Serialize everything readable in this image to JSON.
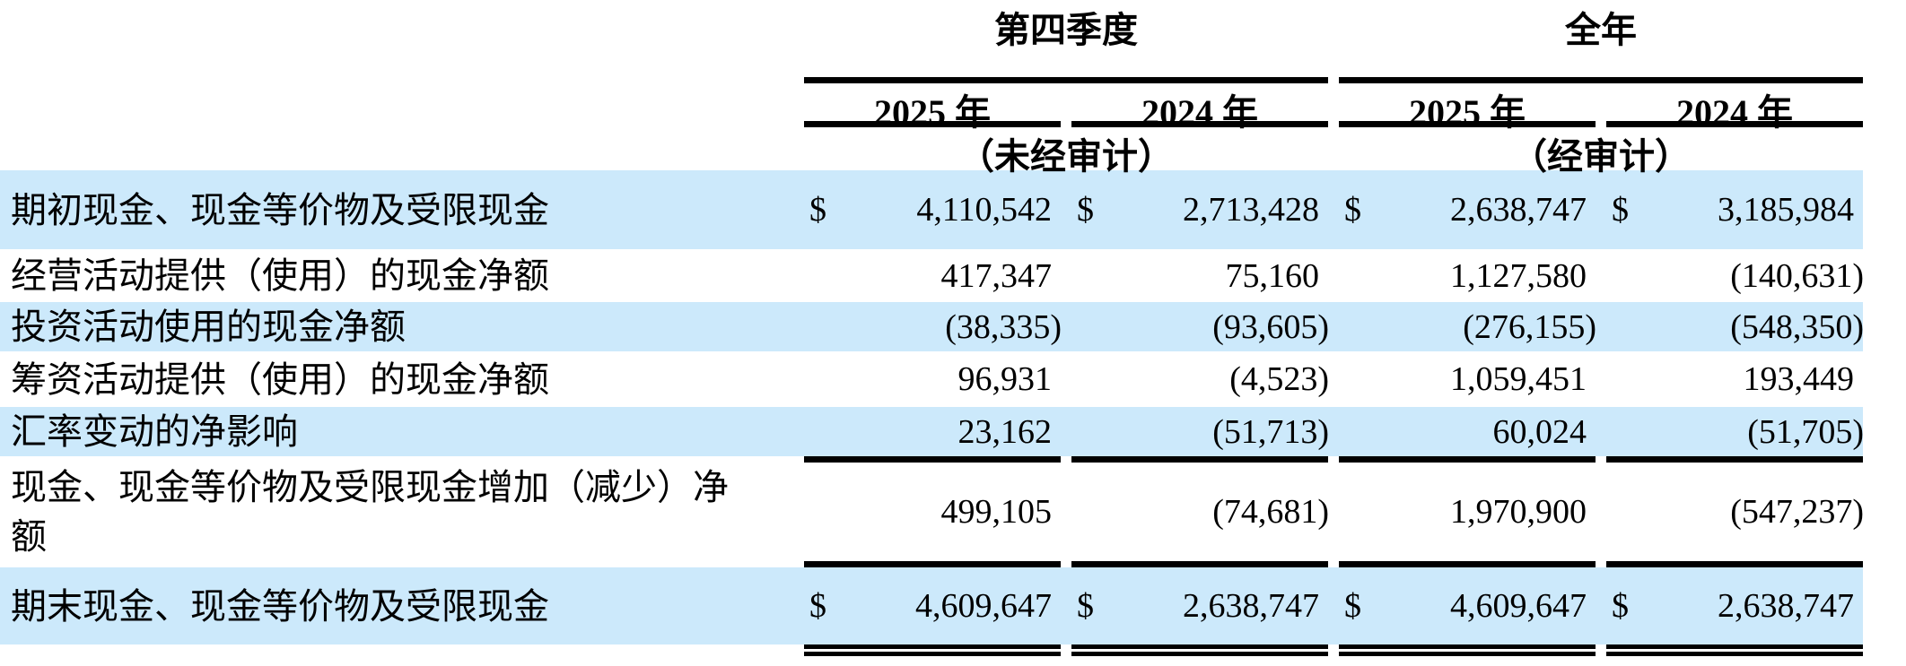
{
  "style": {
    "shaded_row_color": "#cce9fb",
    "rule_color": "#000000",
    "text_color": "#000000",
    "background_color": "#ffffff"
  },
  "table": {
    "currency_symbol": "$",
    "groups": [
      {
        "title": "第四季度",
        "note": "（未经审计）",
        "years": [
          "2025 年",
          "2024 年"
        ]
      },
      {
        "title": "全年",
        "note": "（经审计）",
        "years": [
          "2025 年",
          "2024 年"
        ]
      }
    ],
    "rows": [
      {
        "label": "期初现金、现金等价物及受限现金",
        "dollar": true,
        "values": [
          "4,110,542",
          "2,713,428",
          "2,638,747",
          "3,185,984"
        ],
        "shaded": true
      },
      {
        "label": "经营活动提供（使用）的现金净额",
        "dollar": false,
        "values": [
          "417,347",
          "75,160",
          "1,127,580",
          "(140,631)"
        ],
        "shaded": false
      },
      {
        "label": "投资活动使用的现金净额",
        "dollar": false,
        "values": [
          "(38,335)",
          "(93,605)",
          "(276,155)",
          "(548,350)"
        ],
        "shaded": true
      },
      {
        "label": "筹资活动提供（使用）的现金净额",
        "dollar": false,
        "values": [
          "96,931",
          "(4,523)",
          "1,059,451",
          "193,449"
        ],
        "shaded": false
      },
      {
        "label": "汇率变动的净影响",
        "dollar": false,
        "values": [
          "23,162",
          "(51,713)",
          "60,024",
          "(51,705)"
        ],
        "shaded": true
      },
      {
        "label": "现金、现金等价物及受限现金增加（减少）净额",
        "dollar": false,
        "values": [
          "499,105",
          "(74,681)",
          "1,970,900",
          "(547,237)"
        ],
        "shaded": false,
        "rule_above": true
      },
      {
        "label": "期末现金、现金等价物及受限现金",
        "dollar": true,
        "values": [
          "4,609,647",
          "2,638,747",
          "4,609,647",
          "2,638,747"
        ],
        "shaded": true,
        "rule_above": true,
        "double_rule_below": true
      }
    ]
  }
}
